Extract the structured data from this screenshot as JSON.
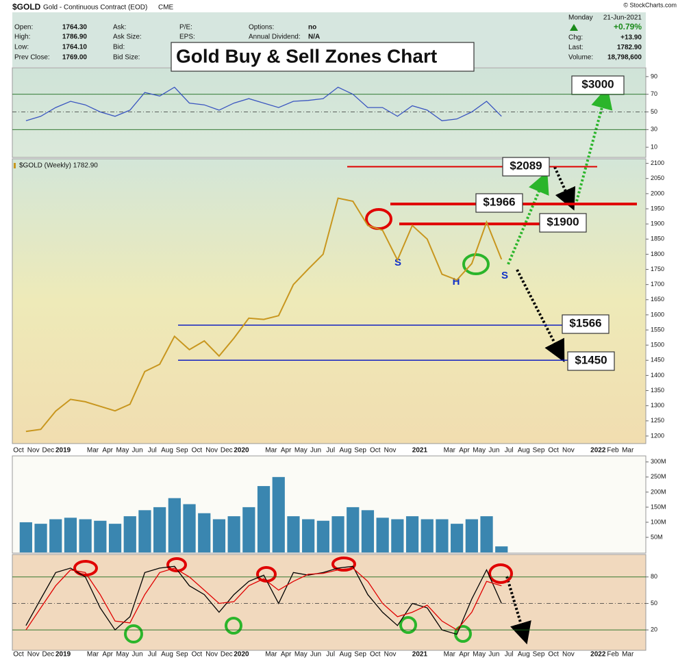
{
  "header": {
    "symbol": "$GOLD",
    "name": "Gold - Continuous Contract (EOD)",
    "exchange": "CME",
    "credit": "© StockCharts.com",
    "day": "Monday",
    "date": "21-Jun-2021",
    "change_pct": "+0.79%",
    "quote": [
      {
        "label": "Open:",
        "value": "1764.30"
      },
      {
        "label": "High:",
        "value": "1786.90"
      },
      {
        "label": "Low:",
        "value": "1764.10"
      },
      {
        "label": "Prev Close:",
        "value": "1769.00"
      }
    ],
    "book": [
      "Ask:",
      "Ask Size:",
      "Bid:",
      "Bid Size:"
    ],
    "ratios": [
      "P/E:",
      "EPS:"
    ],
    "extra": [
      {
        "label": "Options:",
        "value": "no"
      },
      {
        "label": "Annual Dividend:",
        "value": "N/A"
      }
    ],
    "summary": [
      {
        "label": "Chg:",
        "value": "+13.90"
      },
      {
        "label": "Last:",
        "value": "1782.90"
      },
      {
        "label": "Volume:",
        "value": "18,798,600"
      }
    ]
  },
  "title": "Gold Buy & Sell Zones Chart",
  "annotations": [
    "$3000",
    "S",
    "H",
    "S"
  ],
  "chart_data": [
    {
      "type": "line",
      "ylim": [
        0,
        100
      ],
      "yticks": [
        10,
        30,
        50,
        70,
        90
      ],
      "reference_lines": [
        70,
        50,
        30
      ],
      "series": [
        {
          "color": "#3a55c0",
          "values": [
            40,
            45,
            55,
            62,
            58,
            50,
            45,
            52,
            72,
            68,
            78,
            60,
            58,
            52,
            60,
            65,
            60,
            55,
            62,
            63,
            65,
            78,
            70,
            55,
            55,
            45,
            57,
            52,
            40,
            42,
            50,
            62,
            45,
            null,
            null,
            null,
            null,
            null,
            null,
            null,
            null,
            null
          ]
        }
      ]
    },
    {
      "type": "line",
      "ylim": [
        1175,
        2115
      ],
      "yticks": [
        1200,
        1250,
        1300,
        1350,
        1400,
        1450,
        1500,
        1550,
        1600,
        1650,
        1700,
        1750,
        1800,
        1850,
        1900,
        1950,
        2000,
        2050,
        2100
      ],
      "categories": [
        "Oct",
        "Nov",
        "Dec",
        "2019",
        null,
        "Mar",
        "Apr",
        "May",
        "Jun",
        "Jul",
        "Aug",
        "Sep",
        "Oct",
        "Nov",
        "Dec",
        "2020",
        null,
        "Mar",
        "Apr",
        "May",
        "Jun",
        "Jul",
        "Aug",
        "Sep",
        "Oct",
        "Nov",
        null,
        "2021",
        null,
        "Mar",
        "Apr",
        "May",
        "Jun",
        "Jul",
        "Aug",
        "Sep",
        "Oct",
        "Nov",
        null,
        "2022",
        "Feb",
        "Mar"
      ],
      "series": [
        {
          "name": "$GOLD (Weekly) 1782.90",
          "color": "#c8961e",
          "values": [
            1215,
            1222,
            1282,
            1321,
            1313,
            1298,
            1283,
            1305,
            1413,
            1437,
            1529,
            1485,
            1514,
            1464,
            1523,
            1589,
            1585,
            1597,
            1700,
            1751,
            1800,
            1985,
            1975,
            1895,
            1879,
            1781,
            1895,
            1850,
            1734,
            1715,
            1769,
            1906,
            1783,
            null,
            null,
            null,
            null,
            null,
            null,
            null,
            null,
            null
          ]
        }
      ],
      "levels": [
        {
          "value": 2089,
          "label": "$2089",
          "color": "#e00000"
        },
        {
          "value": 1966,
          "label": "$1966",
          "color": "#e00000"
        },
        {
          "value": 1900,
          "label": "$1900",
          "color": "#e00000"
        },
        {
          "value": 1566,
          "label": "$1566",
          "color": "#1020c0"
        },
        {
          "value": 1450,
          "label": "$1450",
          "color": "#1020c0"
        }
      ]
    },
    {
      "type": "bar",
      "ylim": [
        0,
        320000000
      ],
      "yticks": [
        {
          "value": 50000000,
          "label": "50M"
        },
        {
          "value": 100000000,
          "label": "100M"
        },
        {
          "value": 150000000,
          "label": "150M"
        },
        {
          "value": 200000000,
          "label": "200M"
        },
        {
          "value": 250000000,
          "label": "250M"
        },
        {
          "value": 300000000,
          "label": "300M"
        }
      ],
      "series": [
        {
          "color": "#3a86b0",
          "values": [
            100000000,
            95000000,
            110000000,
            115000000,
            110000000,
            105000000,
            95000000,
            120000000,
            140000000,
            150000000,
            180000000,
            160000000,
            130000000,
            110000000,
            120000000,
            150000000,
            220000000,
            250000000,
            120000000,
            110000000,
            105000000,
            120000000,
            150000000,
            140000000,
            115000000,
            110000000,
            120000000,
            110000000,
            110000000,
            95000000,
            110000000,
            120000000,
            20000000,
            null,
            null,
            null,
            null,
            null,
            null,
            null,
            null,
            null
          ]
        }
      ]
    },
    {
      "type": "line",
      "ylim": [
        0,
        100
      ],
      "yticks": [
        20,
        50,
        80
      ],
      "reference_lines": [
        80,
        50,
        20
      ],
      "categories": [
        "Oct",
        "Nov",
        "Dec",
        "2019",
        null,
        "Mar",
        "Apr",
        "May",
        "Jun",
        "Jul",
        "Aug",
        "Sep",
        "Oct",
        "Nov",
        "Dec",
        "2020",
        null,
        "Mar",
        "Apr",
        "May",
        "Jun",
        "Jul",
        "Aug",
        "Sep",
        "Oct",
        "Nov",
        null,
        "2021",
        null,
        "Mar",
        "Apr",
        "May",
        "Jun",
        "Jul",
        "Aug",
        "Sep",
        "Oct",
        "Nov",
        null,
        "2022",
        "Feb",
        "Mar"
      ],
      "series": [
        {
          "color": "#000000",
          "values": [
            25,
            55,
            85,
            90,
            80,
            45,
            20,
            35,
            85,
            90,
            92,
            70,
            60,
            40,
            60,
            75,
            82,
            50,
            85,
            82,
            85,
            90,
            92,
            60,
            40,
            25,
            50,
            45,
            20,
            15,
            55,
            88,
            50,
            null,
            null,
            null,
            null,
            null,
            null,
            null,
            null,
            null
          ]
        },
        {
          "color": "#e00000",
          "values": [
            20,
            45,
            70,
            88,
            85,
            60,
            30,
            28,
            60,
            85,
            90,
            80,
            65,
            50,
            52,
            70,
            78,
            65,
            75,
            83,
            84,
            88,
            90,
            75,
            50,
            35,
            40,
            48,
            30,
            20,
            40,
            75,
            70,
            null,
            null,
            null,
            null,
            null,
            null,
            null,
            null,
            null
          ]
        }
      ]
    }
  ]
}
